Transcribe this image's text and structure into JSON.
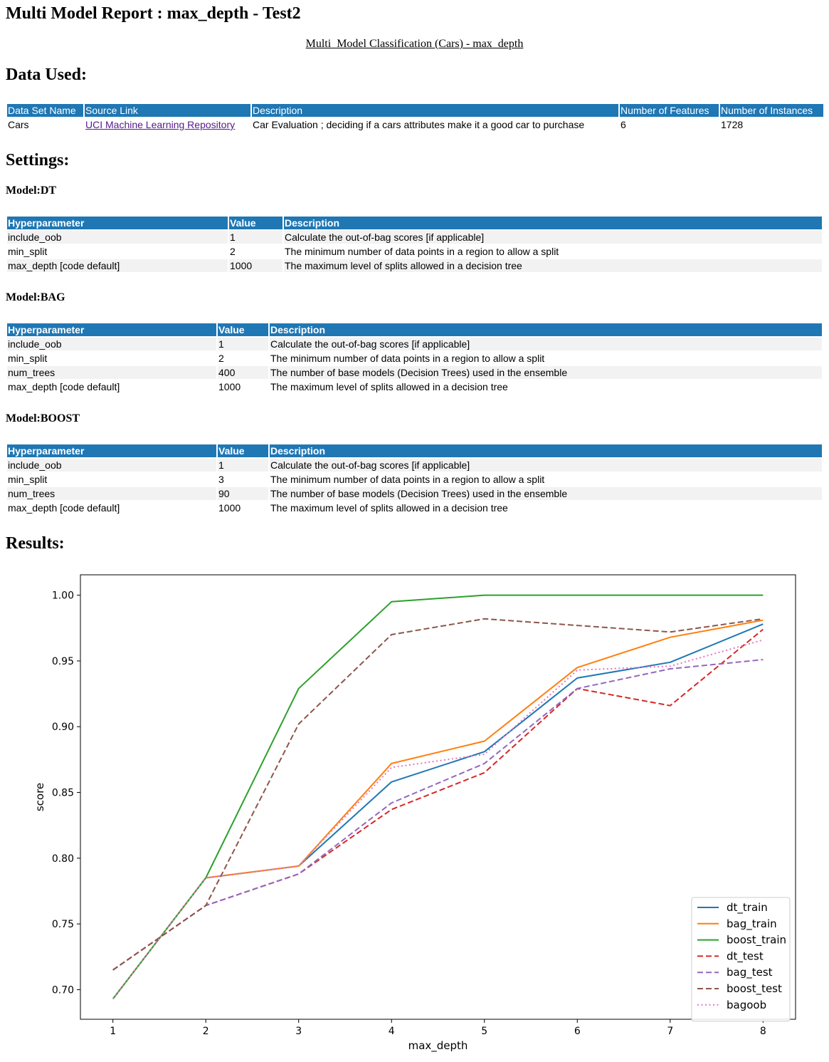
{
  "page": {
    "title": "Multi Model Report : max_depth - Test2",
    "subtitle": "Multi_Model Classification (Cars) - max_depth",
    "data_used_heading": "Data Used:",
    "settings_heading": "Settings:",
    "results_heading": "Results:"
  },
  "data_table": {
    "headers": [
      "Data Set Name",
      "Source Link",
      "Description",
      "Number of Features",
      "Number of Instances"
    ],
    "row": {
      "name": "Cars",
      "source": "UCI Machine Learning Repository",
      "description": "Car Evaluation ; deciding if a cars attributes make it a good car to purchase",
      "features": "6",
      "instances": "1728"
    }
  },
  "models": [
    {
      "heading": "Model:DT",
      "headers": [
        "Hyperparameter",
        "Value",
        "Description"
      ],
      "rows": [
        [
          "include_oob",
          "1",
          "Calculate the out-of-bag scores [if applicable]"
        ],
        [
          "min_split",
          "2",
          "The minimum number of data points in a region to allow a split"
        ],
        [
          "max_depth [code default]",
          "1000",
          "The maximum level of splits allowed in a decision tree"
        ]
      ]
    },
    {
      "heading": "Model:BAG",
      "headers": [
        "Hyperparameter",
        "Value",
        "Description"
      ],
      "rows": [
        [
          "include_oob",
          "1",
          "Calculate the out-of-bag scores [if applicable]"
        ],
        [
          "min_split",
          "2",
          "The minimum number of data points in a region to allow a split"
        ],
        [
          "num_trees",
          "400",
          "The number of base models (Decision Trees) used in the ensemble"
        ],
        [
          "max_depth [code default]",
          "1000",
          "The maximum level of splits allowed in a decision tree"
        ]
      ]
    },
    {
      "heading": "Model:BOOST",
      "headers": [
        "Hyperparameter",
        "Value",
        "Description"
      ],
      "rows": [
        [
          "include_oob",
          "1",
          "Calculate the out-of-bag scores [if applicable]"
        ],
        [
          "min_split",
          "3",
          "The minimum number of data points in a region to allow a split"
        ],
        [
          "num_trees",
          "90",
          "The number of base models (Decision Trees) used in the ensemble"
        ],
        [
          "max_depth [code default]",
          "1000",
          "The maximum level of splits allowed in a decision tree"
        ]
      ]
    }
  ],
  "colors": {
    "header_bg": "#1f77b4",
    "stripe": "#f2f2f2",
    "link": "#551a8b"
  },
  "chart_data": {
    "type": "line",
    "title": "",
    "xlabel": "max_depth",
    "ylabel": "score",
    "x": [
      1,
      2,
      3,
      4,
      5,
      6,
      7,
      8
    ],
    "xlim": [
      0.65,
      8.35
    ],
    "ylim": [
      0.6775,
      1.0155
    ],
    "xticks": [
      "1",
      "2",
      "3",
      "4",
      "5",
      "6",
      "7",
      "8"
    ],
    "yticks": [
      "0.70",
      "0.75",
      "0.80",
      "0.85",
      "0.90",
      "0.95",
      "1.00"
    ],
    "ytick_values": [
      0.7,
      0.75,
      0.8,
      0.85,
      0.9,
      0.95,
      1.0
    ],
    "grid": false,
    "legend": "lower-right",
    "series": [
      {
        "name": "dt_train",
        "style": "solid",
        "color": "#1f77b4",
        "values": [
          0.693,
          0.785,
          0.794,
          0.858,
          0.881,
          0.937,
          0.949,
          0.978
        ]
      },
      {
        "name": "bag_train",
        "style": "solid",
        "color": "#ff7f0e",
        "values": [
          0.693,
          0.785,
          0.794,
          0.872,
          0.889,
          0.945,
          0.968,
          0.981
        ]
      },
      {
        "name": "boost_train",
        "style": "solid",
        "color": "#2ca02c",
        "values": [
          0.693,
          0.785,
          0.929,
          0.995,
          1.0,
          1.0,
          1.0,
          1.0
        ]
      },
      {
        "name": "dt_test",
        "style": "dashed",
        "color": "#d62728",
        "values": [
          0.715,
          0.764,
          0.788,
          0.837,
          0.865,
          0.929,
          0.916,
          0.974
        ]
      },
      {
        "name": "bag_test",
        "style": "dashed",
        "color": "#9467bd",
        "values": [
          0.715,
          0.764,
          0.788,
          0.842,
          0.872,
          0.929,
          0.944,
          0.951
        ]
      },
      {
        "name": "boost_test",
        "style": "dashed",
        "color": "#8c564b",
        "values": [
          0.715,
          0.764,
          0.902,
          0.97,
          0.982,
          0.977,
          0.972,
          0.982
        ]
      },
      {
        "name": "bagoob",
        "style": "dotted",
        "color": "#e377c2",
        "values": [
          0.693,
          0.785,
          0.794,
          0.869,
          0.879,
          0.943,
          0.946,
          0.966
        ]
      }
    ]
  }
}
